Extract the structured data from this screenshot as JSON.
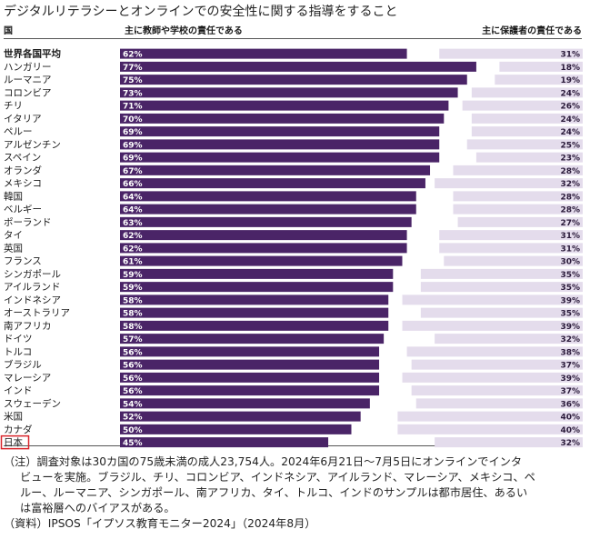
{
  "page": {
    "title": "デジタルリテラシーとオンラインでの安全性に関する指導をすること",
    "note_lines": [
      "（注）調査対象は30カ国の75歳未満の成人23,754人。2024年6月21日～7月5日にオンラインでインタ",
      "ビューを実施。ブラジル、チリ、コロンビア、インドネシア、アイルランド、マレーシア、メキシコ、ペ",
      "ルー、ルーマニア、シンガポール、南アフリカ、タイ、トルコ、インドのサンプルは都市居住、あるい",
      "は富裕層へのバイアスがある。",
      "（資料）IPSOS「イプソス教育モニター2024」（2024年8月）"
    ]
  },
  "chart_data": {
    "type": "bar",
    "column_headers": {
      "country": "国",
      "teacher": "主に教師や学校の責任である",
      "parent": "主に保護者の責任である"
    },
    "categories": [
      "世界各国平均",
      "ハンガリー",
      "ルーマニア",
      "コロンビア",
      "チリ",
      "イタリア",
      "ペルー",
      "アルゼンチン",
      "スペイン",
      "オランダ",
      "メキシコ",
      "韓国",
      "ベルギー",
      "ポーランド",
      "タイ",
      "英国",
      "フランス",
      "シンガポール",
      "アイルランド",
      "インドネシア",
      "オーストラリア",
      "南アフリカ",
      "ドイツ",
      "トルコ",
      "ブラジル",
      "マレーシア",
      "インド",
      "スウェーデン",
      "米国",
      "カナダ",
      "日本"
    ],
    "bold_category": "世界各国平均",
    "highlight_category": "日本",
    "series": [
      {
        "name": "主に教師や学校の責任である",
        "color": "#4a2467",
        "values": [
          62,
          77,
          75,
          73,
          71,
          70,
          69,
          69,
          69,
          67,
          66,
          64,
          64,
          63,
          62,
          62,
          61,
          59,
          59,
          58,
          58,
          58,
          57,
          56,
          56,
          56,
          56,
          54,
          52,
          50,
          45
        ]
      },
      {
        "name": "主に保護者の責任である",
        "color": "#e4dcec",
        "values": [
          31,
          18,
          19,
          24,
          26,
          24,
          24,
          25,
          23,
          28,
          32,
          28,
          28,
          27,
          31,
          31,
          30,
          35,
          35,
          39,
          35,
          39,
          32,
          38,
          37,
          39,
          37,
          36,
          40,
          40,
          32
        ]
      }
    ],
    "value_suffix": "%",
    "xlim": [
      0,
      100
    ],
    "colors": {
      "teacher_bar": "#4a2467",
      "parent_bar": "#e4dcec",
      "highlight_box": "#d9262c"
    }
  }
}
